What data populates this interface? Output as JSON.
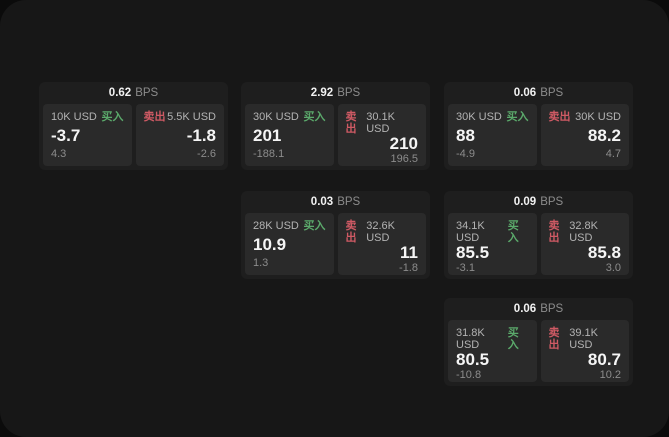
{
  "labels": {
    "buy": "买入",
    "sell": "卖出",
    "bps_unit": "BPS"
  },
  "colors": {
    "page_background": "#0b0b0b",
    "window_background": "#171717",
    "card_background": "#1e1e1e",
    "panel_background": "#2a2a2a",
    "buy_green": "#5ba96b",
    "sell_red": "#cf5a64",
    "value_white": "#f5f5f5",
    "label_gray": "#b3b3b3",
    "muted_gray": "#8c8c8c"
  },
  "cards": [
    {
      "bps": "0.62",
      "buy": {
        "amount": "10K USD",
        "price": "-3.7",
        "delta": "4.3"
      },
      "sell": {
        "amount": "5.5K USD",
        "price": "-1.8",
        "delta": "-2.6"
      }
    },
    {
      "bps": "2.92",
      "buy": {
        "amount": "30K USD",
        "price": "201",
        "delta": "-188.1"
      },
      "sell": {
        "amount": "30.1K USD",
        "price": "210",
        "delta": "196.5"
      }
    },
    {
      "bps": "0.06",
      "buy": {
        "amount": "30K USD",
        "price": "88",
        "delta": "-4.9"
      },
      "sell": {
        "amount": "30K USD",
        "price": "88.2",
        "delta": "4.7"
      }
    },
    {
      "bps": "0.03",
      "buy": {
        "amount": "28K USD",
        "price": "10.9",
        "delta": "1.3"
      },
      "sell": {
        "amount": "32.6K USD",
        "price": "11",
        "delta": "-1.8"
      }
    },
    {
      "bps": "0.09",
      "buy": {
        "amount": "34.1K USD",
        "price": "85.5",
        "delta": "-3.1"
      },
      "sell": {
        "amount": "32.8K USD",
        "price": "85.8",
        "delta": "3.0"
      }
    },
    {
      "bps": "0.06",
      "buy": {
        "amount": "31.8K USD",
        "price": "80.5",
        "delta": "-10.8"
      },
      "sell": {
        "amount": "39.1K USD",
        "price": "80.7",
        "delta": "10.2"
      }
    }
  ]
}
